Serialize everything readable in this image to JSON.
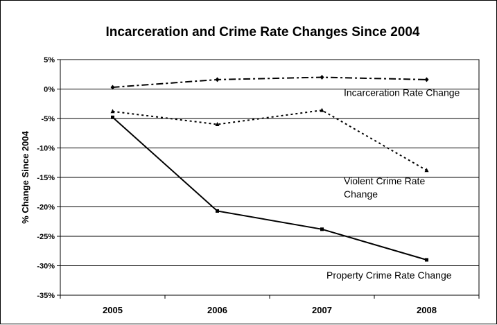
{
  "chart_data": {
    "type": "line",
    "title": "Incarceration and Crime Rate Changes Since 2004",
    "ylabel": "% Change Since 2004",
    "xlabel": "",
    "categories": [
      "2005",
      "2006",
      "2007",
      "2008"
    ],
    "ylim": [
      -35,
      5
    ],
    "ytick_step": 5,
    "ytick_labels": [
      "5%",
      "0%",
      "-5%",
      "-10%",
      "-15%",
      "-20%",
      "-25%",
      "-30%",
      "-35%"
    ],
    "grid": "horizontal",
    "legend": "none",
    "series": [
      {
        "name": "Incarceration Rate Change",
        "values": [
          0.3,
          1.6,
          2.0,
          1.6
        ],
        "style": "dash-dot",
        "marker": "diamond",
        "color": "#000000"
      },
      {
        "name": "Violent Crime Rate Change",
        "values": [
          -3.8,
          -6.0,
          -3.6,
          -13.8
        ],
        "style": "dotted",
        "marker": "triangle",
        "color": "#000000"
      },
      {
        "name": "Property Crime Rate Change",
        "values": [
          -4.8,
          -20.7,
          -23.8,
          -29.0
        ],
        "style": "solid",
        "marker": "square",
        "color": "#000000"
      }
    ],
    "annotations": [
      {
        "series": 0,
        "lines": [
          "Incarceration Rate Change"
        ],
        "value": -1.2
      },
      {
        "series": 1,
        "lines": [
          "Violent Crime Rate",
          "Change"
        ],
        "value": -16.2
      },
      {
        "series": 2,
        "lines": [
          "Property Crime Rate Change"
        ],
        "value": -32.2
      }
    ]
  }
}
